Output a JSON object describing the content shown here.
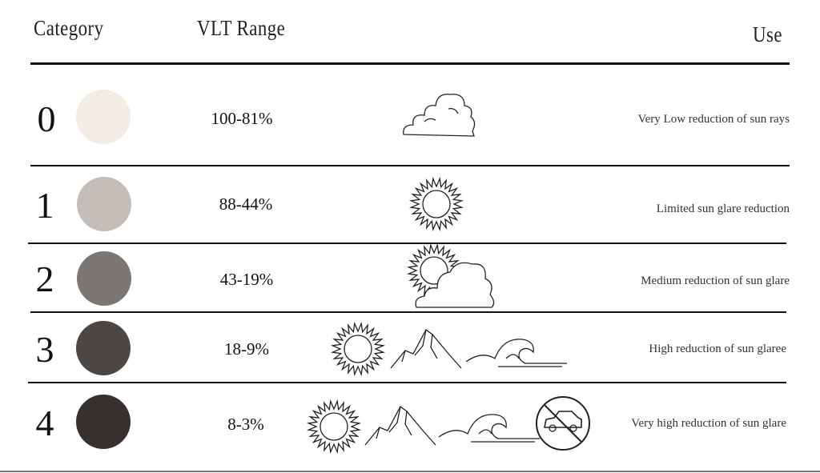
{
  "header": {
    "category": "Category",
    "vlt_range": "VLT Range",
    "use": "Use"
  },
  "rows": [
    {
      "category": "0",
      "color": "#f3ece4",
      "vlt": "100-81%",
      "icons": [
        "cloud-icon"
      ],
      "use": "Very Low reduction of sun rays"
    },
    {
      "category": "1",
      "color": "#c4bdb8",
      "vlt": "88-44%",
      "icons": [
        "sun-icon"
      ],
      "use": "Limited  sun glare reduction"
    },
    {
      "category": "2",
      "color": "#7a7674",
      "vlt": "43-19%",
      "icons": [
        "sun-behind-cloud-icon"
      ],
      "use": "Medium reduction of sun glare"
    },
    {
      "category": "3",
      "color": "#4b4745",
      "vlt": "18-9%",
      "icons": [
        "sun-icon",
        "mountain-icon",
        "wave-icon"
      ],
      "use": "High reduction of sun glaree"
    },
    {
      "category": "4",
      "color": "#36312e",
      "vlt": "8-3%",
      "icons": [
        "sun-icon",
        "mountain-icon",
        "wave-icon",
        "no-driving-icon"
      ],
      "use": "Very high reduction of sun glare"
    }
  ]
}
